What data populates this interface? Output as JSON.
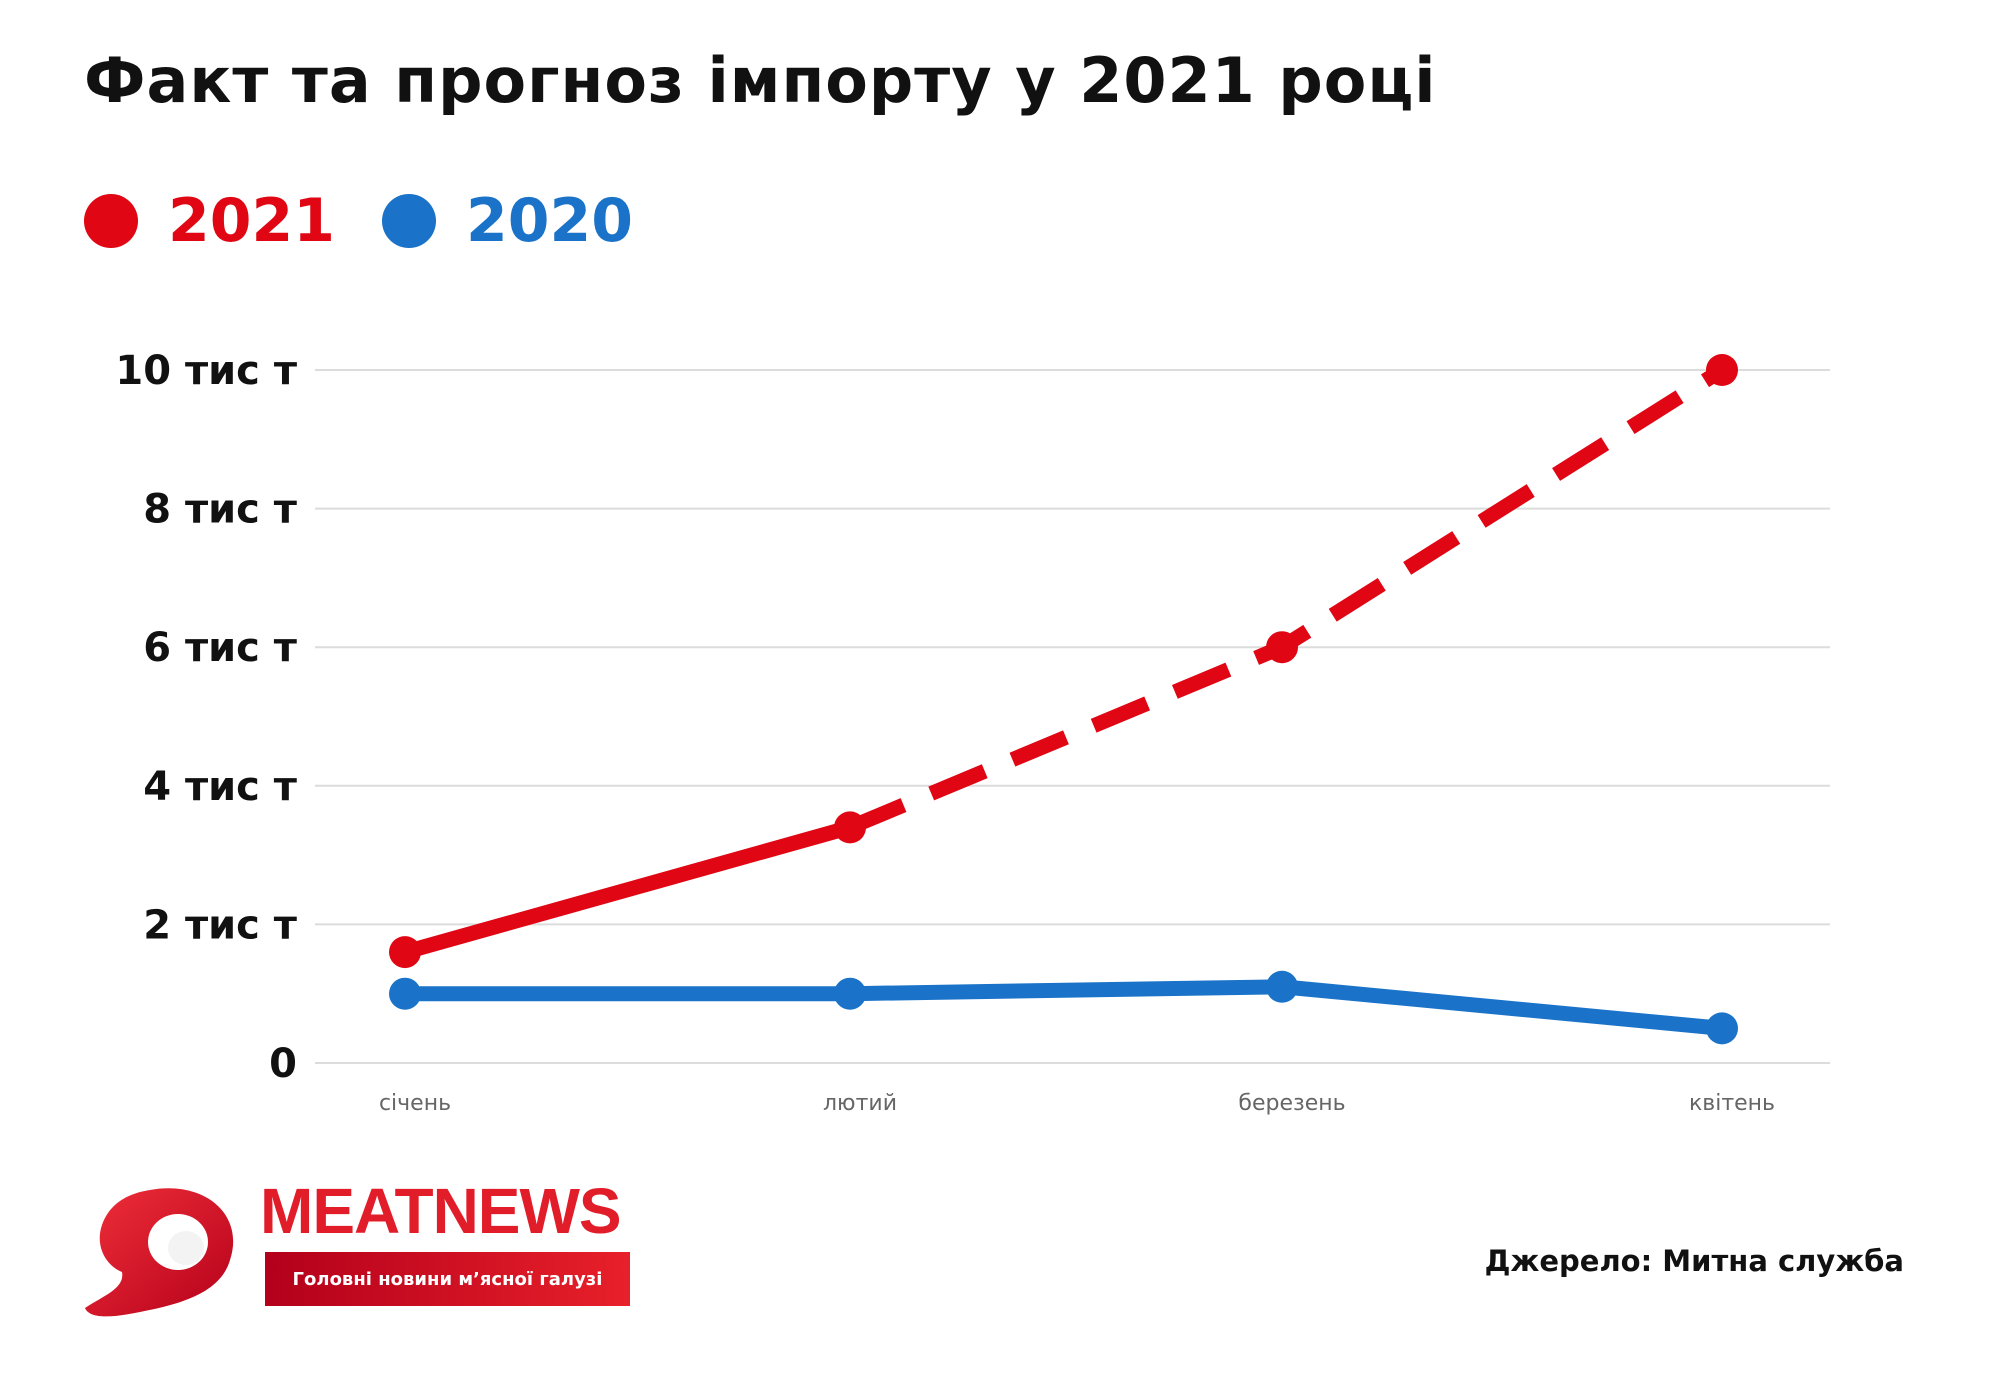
{
  "title": "Факт та прогноз імпорту у 2021 році",
  "legend": [
    {
      "label": "2021",
      "color": "#e00613"
    },
    {
      "label": "2020",
      "color": "#1a73c8"
    }
  ],
  "chart_data": {
    "type": "line",
    "categories": [
      "січень",
      "лютий",
      "березень",
      "квітень"
    ],
    "yticks": [
      "0",
      "2 тис т",
      "4 тис т",
      "6 тис т",
      "8 тис т",
      "10 тис т"
    ],
    "ytick_values": [
      0,
      2,
      4,
      6,
      8,
      10
    ],
    "ylim": [
      0,
      10
    ],
    "series": [
      {
        "name": "2021",
        "color": "#e00613",
        "values": [
          1.6,
          3.4,
          6.0,
          10.0
        ],
        "forecast_from_index": 1
      },
      {
        "name": "2020",
        "color": "#1a73c8",
        "values": [
          1.0,
          1.0,
          1.1,
          0.5
        ]
      }
    ],
    "title": "Факт та прогноз імпорту у 2021 році",
    "xlabel": "",
    "ylabel": ""
  },
  "logo": {
    "name": "MEATNEWS",
    "tagline": "Головні новини м’ясної галузі"
  },
  "source": "Джерело: Митна служба"
}
